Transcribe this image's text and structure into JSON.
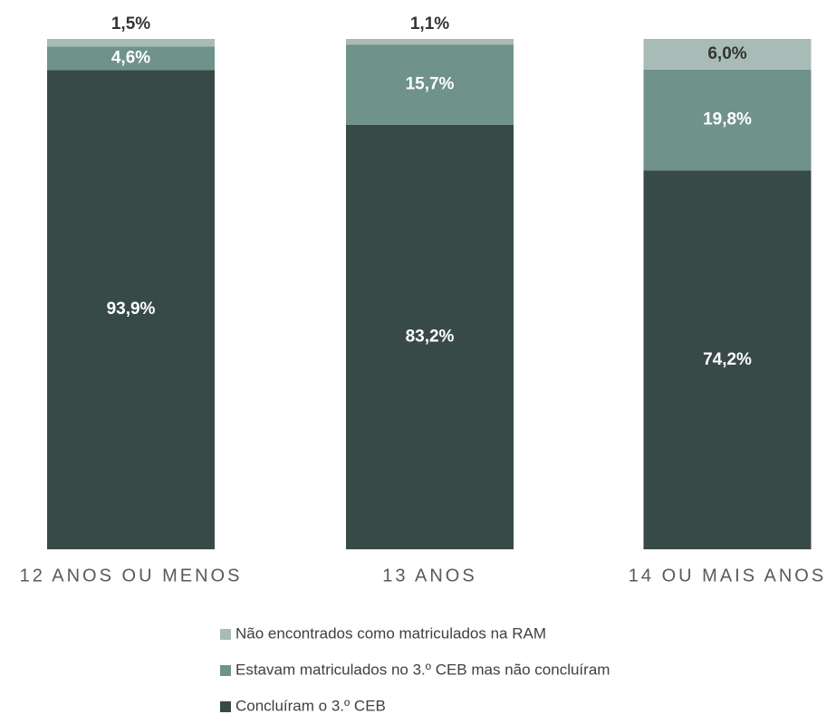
{
  "chart_data": {
    "type": "stacked_bar",
    "categories": [
      "12 ANOS OU MENOS",
      "13 ANOS",
      "14 OU MAIS ANOS"
    ],
    "series": [
      {
        "name": "Concluíram o 3.º CEB",
        "color": "#384a47",
        "values": [
          93.9,
          83.2,
          74.2
        ],
        "value_labels": [
          "93,9%",
          "83,2%",
          "74,2%"
        ]
      },
      {
        "name": "Estavam matriculados no 3.º CEB mas não concluíram",
        "color": "#6f928a",
        "values": [
          4.6,
          15.7,
          19.8
        ],
        "value_labels": [
          "4,6%",
          "15,7%",
          "19,8%"
        ]
      },
      {
        "name": "Não encontrados como matriculados na RAM",
        "color": "#a8bbb7",
        "values": [
          1.5,
          1.1,
          6.0
        ],
        "value_labels": [
          "1,5%",
          "1,1%",
          "6,0%"
        ]
      }
    ]
  }
}
